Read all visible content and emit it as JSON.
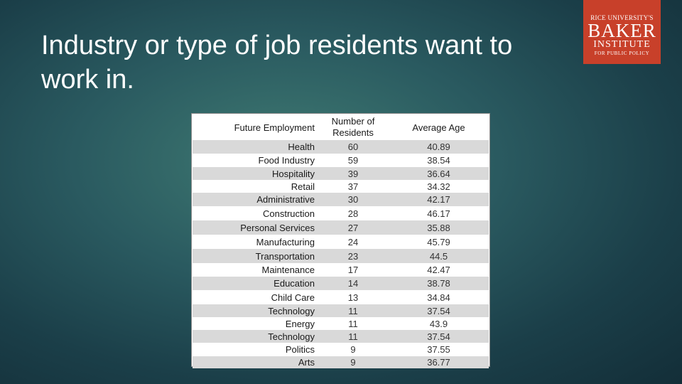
{
  "title": "Industry or type of job residents want to work in.",
  "logo": {
    "line1": "RICE UNIVERSITY'S",
    "line2": "BAKER",
    "line3": "INSTITUTE",
    "line4": "FOR PUBLIC POLICY"
  },
  "table": {
    "headers": [
      "Future Employment",
      "Number of Residents",
      "Average Age"
    ],
    "rows": [
      {
        "employment": "Health",
        "residents": "60",
        "age": "40.89"
      },
      {
        "employment": "Food Industry",
        "residents": "59",
        "age": "38.54"
      },
      {
        "employment": "Hospitality",
        "residents": "39",
        "age": "36.64"
      },
      {
        "employment": "Retail",
        "residents": "37",
        "age": "34.32"
      },
      {
        "employment": "Administrative",
        "residents": "30",
        "age": "42.17"
      },
      {
        "employment": "Construction",
        "residents": "28",
        "age": "46.17"
      },
      {
        "employment": "Personal Services",
        "residents": "27",
        "age": "35.88"
      },
      {
        "employment": "Manufacturing",
        "residents": "24",
        "age": "45.79"
      },
      {
        "employment": "Transportation",
        "residents": "23",
        "age": "44.5"
      },
      {
        "employment": "Maintenance",
        "residents": "17",
        "age": "42.47"
      },
      {
        "employment": "Education",
        "residents": "14",
        "age": "38.78"
      },
      {
        "employment": "Child Care",
        "residents": "13",
        "age": "34.84"
      },
      {
        "employment": "Technology",
        "residents": "11",
        "age": "37.54"
      },
      {
        "employment": "Energy",
        "residents": "11",
        "age": "43.9"
      },
      {
        "employment": "Technology",
        "residents": "11",
        "age": "37.54"
      },
      {
        "employment": "Politics",
        "residents": "9",
        "age": "37.55"
      },
      {
        "employment": "Arts",
        "residents": "9",
        "age": "36.77"
      }
    ]
  }
}
